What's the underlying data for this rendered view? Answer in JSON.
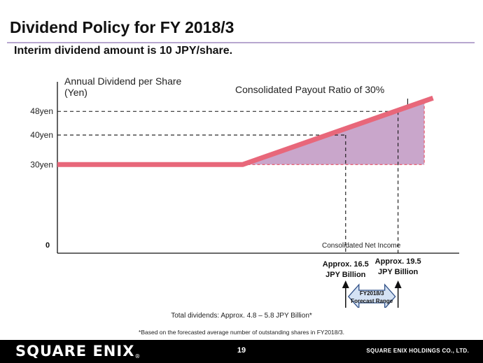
{
  "slide": {
    "title": "Dividend Policy for FY 2018/3",
    "subtitle": "Interim dividend amount is 10 JPY/share."
  },
  "chart_data": {
    "type": "line",
    "y_axis_title_line1": "Annual Dividend per Share",
    "y_axis_title_line2": "(Yen)",
    "x_axis_title": "Consolidated Net Income",
    "origin_label": "0",
    "y_tick_labels": [
      "48yen",
      "40yen",
      "30yen"
    ],
    "y_ticks": [
      48,
      40,
      30
    ],
    "payout_ratio_label": "Consolidated Payout Ratio of 30%",
    "series": [
      {
        "values": [
          {
            "x": 0,
            "y": 30
          },
          {
            "x": 10.6,
            "y": 30
          },
          {
            "x": 21.5,
            "y": 52.5
          }
        ]
      }
    ],
    "marker_lines": [
      {
        "x": 16.5,
        "y": 40
      },
      {
        "x": 19.5,
        "y": 48
      }
    ],
    "forecast_range": {
      "from_x": 16.5,
      "to_x": 19.5,
      "from_label_line1": "Approx. 16.5",
      "from_label_line2": "JPY Billion",
      "to_label_line1": "Approx. 19.5",
      "to_label_line2": "JPY Billion",
      "band_label_line1": "FY2018/3",
      "band_label_line2": "Forecast Range"
    },
    "xlim": [
      0,
      23
    ],
    "ylim": [
      0,
      58
    ],
    "colors": {
      "line": "#e8677a",
      "fill": "#c9a6cb",
      "band": "#d4e2f4",
      "band_border": "#2f4f86"
    }
  },
  "notes": {
    "totals": "Total dividends: Approx. 4.8 – 5.8 JPY Billion*",
    "basis": "*Based on the forecasted average number of outstanding shares in FY2018/3."
  },
  "footer": {
    "brand": "SQUARE ENIX",
    "brand_mark": "®",
    "page_number": "19",
    "company": "SQUARE ENIX HOLDINGS CO., LTD."
  }
}
